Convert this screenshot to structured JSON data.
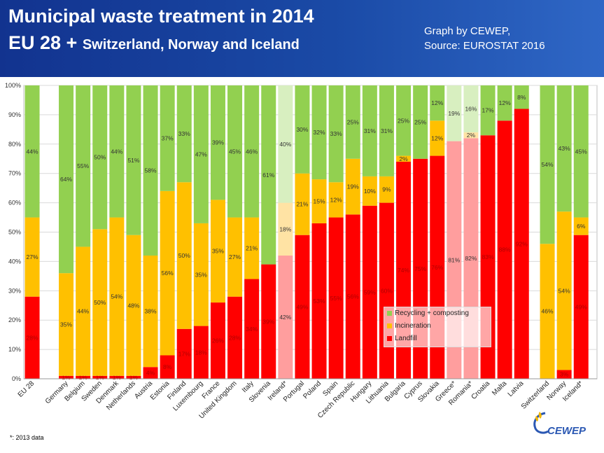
{
  "header": {
    "title_line1": "Municipal waste treatment in 2014",
    "title_line2_big": "EU 28 + ",
    "title_line2_small": "Switzerland, Norway and Iceland",
    "credit_line1": "Graph by CEWEP,",
    "credit_line2": "Source: EUROSTAT 2016"
  },
  "footnote": "*: 2013 data",
  "logo": {
    "text": "CEWEP"
  },
  "colors": {
    "recycling": "#92d050",
    "incineration": "#ffc000",
    "landfill": "#ff0000",
    "recycling_light": "#d8efc0",
    "incineration_light": "#ffe3a4",
    "landfill_light": "#ff9e9e",
    "header": "#1a4aa6"
  },
  "chart_data": {
    "type": "bar",
    "stacked": true,
    "title": "Municipal waste treatment in 2014",
    "ylim": [
      0,
      100
    ],
    "yticks": [
      "0%",
      "10%",
      "20%",
      "30%",
      "40%",
      "50%",
      "60%",
      "70%",
      "80%",
      "90%",
      "100%"
    ],
    "legend": {
      "position": "lower-right",
      "entries": [
        "Recycling + composting",
        "Incineration",
        "Landfill"
      ]
    },
    "categories": [
      {
        "name": "EU 28",
        "landfill": 28,
        "incineration": 27,
        "recycling": 44,
        "lf_label": "28%",
        "inc_label": "27%",
        "rec_label": "44%"
      },
      {
        "name": "Germany",
        "landfill": 1,
        "incineration": 35,
        "recycling": 64,
        "lf_label": "1%",
        "inc_label": "35%",
        "rec_label": "64%"
      },
      {
        "name": "Belgium",
        "landfill": 1,
        "incineration": 44,
        "recycling": 55,
        "lf_label": "1%",
        "inc_label": "44%",
        "rec_label": "55%"
      },
      {
        "name": "Sweden",
        "landfill": 1,
        "incineration": 50,
        "recycling": 50,
        "lf_label": "1%",
        "inc_label": "50%",
        "rec_label": "50%"
      },
      {
        "name": "Denmark",
        "landfill": 1,
        "incineration": 54,
        "recycling": 44,
        "lf_label": "1%",
        "inc_label": "54%",
        "rec_label": "44%"
      },
      {
        "name": "Netherlands",
        "landfill": 1,
        "incineration": 48,
        "recycling": 51,
        "lf_label": "1%",
        "inc_label": "48%",
        "rec_label": "51%"
      },
      {
        "name": "Austria",
        "landfill": 4,
        "incineration": 38,
        "recycling": 58,
        "lf_label": "4%",
        "inc_label": "38%",
        "rec_label": "58%"
      },
      {
        "name": "Estonia",
        "landfill": 8,
        "incineration": 56,
        "recycling": 37,
        "lf_label": "8%",
        "inc_label": "56%",
        "rec_label": "37%"
      },
      {
        "name": "Finland",
        "landfill": 17,
        "incineration": 50,
        "recycling": 33,
        "lf_label": "17%",
        "inc_label": "50%",
        "rec_label": "33%"
      },
      {
        "name": "Luxembourg",
        "landfill": 18,
        "incineration": 35,
        "recycling": 47,
        "lf_label": "18%",
        "inc_label": "35%",
        "rec_label": "47%"
      },
      {
        "name": "France",
        "landfill": 26,
        "incineration": 35,
        "recycling": 39,
        "lf_label": "26%",
        "inc_label": "35%",
        "rec_label": "39%"
      },
      {
        "name": "United Kingdom",
        "landfill": 28,
        "incineration": 27,
        "recycling": 45,
        "lf_label": "28%",
        "inc_label": "27%",
        "rec_label": "45%"
      },
      {
        "name": "Italy",
        "landfill": 34,
        "incineration": 21,
        "recycling": 46,
        "lf_label": "34%",
        "inc_label": "21%",
        "rec_label": "46%"
      },
      {
        "name": "Slovenia",
        "landfill": 39,
        "incineration": 0,
        "recycling": 61,
        "lf_label": "39%",
        "inc_label": "",
        "rec_label": "61%"
      },
      {
        "name": "Ireland*",
        "landfill": 42,
        "incineration": 18,
        "recycling": 40,
        "lf_label": "42%",
        "inc_label": "18%",
        "rec_label": "40%",
        "light": true
      },
      {
        "name": "Portugal",
        "landfill": 49,
        "incineration": 21,
        "recycling": 30,
        "lf_label": "49%",
        "inc_label": "21%",
        "rec_label": "30%"
      },
      {
        "name": "Poland",
        "landfill": 53,
        "incineration": 15,
        "recycling": 32,
        "lf_label": "53%",
        "inc_label": "15%",
        "rec_label": "32%"
      },
      {
        "name": "Spain",
        "landfill": 55,
        "incineration": 12,
        "recycling": 33,
        "lf_label": "55%",
        "inc_label": "12%",
        "rec_label": "33%"
      },
      {
        "name": "Czech Republic",
        "landfill": 56,
        "incineration": 19,
        "recycling": 25,
        "lf_label": "56%",
        "inc_label": "19%",
        "rec_label": "25%"
      },
      {
        "name": "Hungary",
        "landfill": 59,
        "incineration": 10,
        "recycling": 31,
        "lf_label": "59%",
        "inc_label": "10%",
        "rec_label": "31%"
      },
      {
        "name": "Lithuania",
        "landfill": 60,
        "incineration": 9,
        "recycling": 31,
        "lf_label": "60%",
        "inc_label": "9%",
        "rec_label": "31%"
      },
      {
        "name": "Bulgaria",
        "landfill": 74,
        "incineration": 2,
        "recycling": 25,
        "lf_label": "74%",
        "inc_label": "2%",
        "rec_label": "25%"
      },
      {
        "name": "Cyprus",
        "landfill": 75,
        "incineration": 0,
        "recycling": 25,
        "lf_label": "75%",
        "inc_label": "",
        "rec_label": "25%"
      },
      {
        "name": "Slovakia",
        "landfill": 76,
        "incineration": 12,
        "recycling": 12,
        "lf_label": "76%",
        "inc_label": "12%",
        "rec_label": "12%"
      },
      {
        "name": "Greece*",
        "landfill": 81,
        "incineration": 0,
        "recycling": 19,
        "lf_label": "81%",
        "inc_label": "",
        "rec_label": "19%",
        "light": true
      },
      {
        "name": "Romania*",
        "landfill": 82,
        "incineration": 2,
        "recycling": 16,
        "lf_label": "82%",
        "inc_label": "2%",
        "rec_label": "16%",
        "light": true
      },
      {
        "name": "Croatia",
        "landfill": 83,
        "incineration": 0,
        "recycling": 17,
        "lf_label": "83%",
        "inc_label": "",
        "rec_label": "17%"
      },
      {
        "name": "Malta",
        "landfill": 88,
        "incineration": 0,
        "recycling": 12,
        "lf_label": "88%",
        "inc_label": "",
        "rec_label": "12%"
      },
      {
        "name": "Latvia",
        "landfill": 92,
        "incineration": 0,
        "recycling": 8,
        "lf_label": "92%",
        "inc_label": "",
        "rec_label": "8%"
      },
      {
        "name": "Switzerland",
        "landfill": 0,
        "incineration": 46,
        "recycling": 54,
        "lf_label": "",
        "inc_label": "46%",
        "rec_label": "54%"
      },
      {
        "name": "Norway",
        "landfill": 3,
        "incineration": 54,
        "recycling": 43,
        "lf_label": "3%",
        "inc_label": "54%",
        "rec_label": "43%"
      },
      {
        "name": "Iceland*",
        "landfill": 49,
        "incineration": 6,
        "recycling": 45,
        "lf_label": "49%",
        "inc_label": "6%",
        "rec_label": "45%"
      }
    ]
  }
}
